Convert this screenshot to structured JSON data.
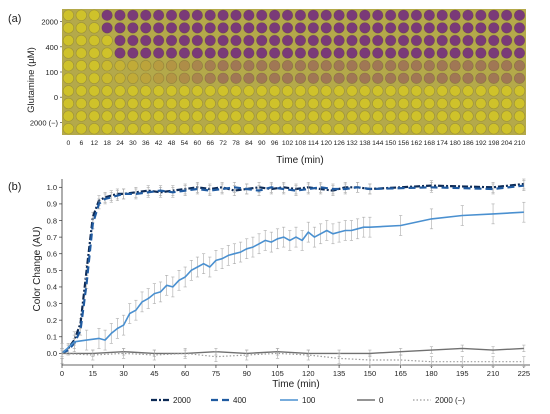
{
  "figure": {
    "panel_a": {
      "label": "(a)",
      "ylabel": "Glutamine (µM)",
      "xlabel": "Time (min)",
      "row_labels": [
        "2000",
        "400",
        "100",
        "0",
        "2000 (−)"
      ],
      "time_ticks": [
        "0",
        "6",
        "12",
        "18",
        "24",
        "30",
        "36",
        "42",
        "48",
        "54",
        "60",
        "66",
        "72",
        "78",
        "84",
        "90",
        "96",
        "102",
        "108",
        "114",
        "120",
        "126",
        "132",
        "138",
        "144",
        "150",
        "156",
        "162",
        "168",
        "174",
        "180",
        "186",
        "192",
        "198",
        "204",
        "210"
      ],
      "colors": {
        "purple": "#7a3a78",
        "yellow": "#cfc22a",
        "tray": "#b4a94a"
      }
    },
    "panel_b": {
      "label": "(b)"
    }
  },
  "chart_data": {
    "type": "line",
    "xlabel": "Time (min)",
    "ylabel": "Color Change (AU)",
    "xlim": [
      0,
      228
    ],
    "ylim": [
      -0.07,
      1.05
    ],
    "xticks": [
      0,
      15,
      30,
      45,
      60,
      75,
      90,
      105,
      120,
      135,
      150,
      165,
      180,
      195,
      210,
      225
    ],
    "yticks": [
      0.0,
      0.1,
      0.2,
      0.3,
      0.4,
      0.5,
      0.6,
      0.7,
      0.8,
      0.9,
      1.0
    ],
    "grid": false,
    "legend_position": "bottom",
    "series": [
      {
        "name": "2000",
        "color": "#0d2a55",
        "dash": "6,2,2,2",
        "width": 2.2,
        "x": [
          0,
          3,
          6,
          9,
          12,
          15,
          18,
          21,
          24,
          27,
          30,
          36,
          42,
          48,
          54,
          60,
          66,
          72,
          78,
          84,
          90,
          96,
          102,
          108,
          114,
          120,
          126,
          132,
          138,
          144,
          150,
          180,
          210,
          225
        ],
        "y": [
          0,
          0.03,
          0.08,
          0.18,
          0.5,
          0.82,
          0.92,
          0.94,
          0.95,
          0.96,
          0.96,
          0.97,
          0.98,
          0.97,
          0.98,
          0.99,
          1.0,
          0.99,
          1.0,
          0.98,
          0.99,
          1.0,
          0.99,
          1.0,
          0.99,
          1.0,
          0.99,
          0.98,
          1.0,
          1.0,
          0.99,
          1.01,
          1.0,
          1.02
        ],
        "err": 0.03
      },
      {
        "name": "400",
        "color": "#1f5aa0",
        "dash": "7,4",
        "width": 2.2,
        "x": [
          0,
          3,
          6,
          9,
          12,
          15,
          18,
          21,
          24,
          27,
          30,
          36,
          42,
          48,
          54,
          60,
          66,
          72,
          78,
          84,
          90,
          96,
          102,
          108,
          114,
          120,
          126,
          132,
          138,
          144,
          150,
          180,
          210,
          225
        ],
        "y": [
          0,
          0.02,
          0.06,
          0.14,
          0.42,
          0.78,
          0.9,
          0.93,
          0.94,
          0.95,
          0.96,
          0.96,
          0.97,
          0.98,
          0.97,
          0.98,
          0.99,
          0.98,
          0.99,
          1.0,
          0.99,
          0.98,
          1.0,
          0.99,
          0.98,
          0.99,
          1.0,
          0.99,
          0.99,
          1.0,
          0.99,
          1.0,
          0.99,
          1.01
        ],
        "err": 0.03
      },
      {
        "name": "100",
        "color": "#4a90d0",
        "dash": "",
        "width": 1.6,
        "x": [
          0,
          6,
          12,
          18,
          21,
          24,
          27,
          30,
          33,
          36,
          39,
          42,
          45,
          48,
          51,
          54,
          57,
          60,
          63,
          66,
          69,
          72,
          75,
          78,
          81,
          84,
          87,
          90,
          93,
          96,
          99,
          102,
          105,
          108,
          111,
          114,
          117,
          120,
          123,
          126,
          129,
          132,
          135,
          138,
          141,
          144,
          147,
          150,
          165,
          180,
          195,
          210,
          225
        ],
        "y": [
          0,
          0.07,
          0.08,
          0.09,
          0.08,
          0.12,
          0.15,
          0.17,
          0.24,
          0.26,
          0.31,
          0.33,
          0.36,
          0.37,
          0.41,
          0.4,
          0.44,
          0.46,
          0.5,
          0.52,
          0.54,
          0.52,
          0.56,
          0.57,
          0.59,
          0.6,
          0.61,
          0.63,
          0.64,
          0.66,
          0.68,
          0.67,
          0.69,
          0.7,
          0.68,
          0.7,
          0.68,
          0.73,
          0.7,
          0.72,
          0.74,
          0.72,
          0.73,
          0.74,
          0.74,
          0.75,
          0.76,
          0.76,
          0.77,
          0.81,
          0.83,
          0.84,
          0.85
        ],
        "err": 0.06
      },
      {
        "name": "0",
        "color": "#707070",
        "dash": "",
        "width": 1.4,
        "x": [
          0,
          15,
          30,
          45,
          60,
          75,
          90,
          105,
          120,
          135,
          150,
          165,
          180,
          195,
          210,
          225
        ],
        "y": [
          0.0,
          0.0,
          0.01,
          0.0,
          0.0,
          0.01,
          0.0,
          0.01,
          0.0,
          0.0,
          0.0,
          0.01,
          0.02,
          0.03,
          0.02,
          0.03
        ],
        "err": 0.02
      },
      {
        "name": "2000 (−)",
        "color": "#9a9a9a",
        "dash": "1.5,2",
        "width": 1.2,
        "x": [
          0,
          15,
          30,
          45,
          60,
          75,
          90,
          105,
          120,
          135,
          150,
          165,
          180,
          195,
          210,
          225
        ],
        "y": [
          0.0,
          -0.01,
          0.0,
          -0.01,
          0.0,
          -0.02,
          -0.01,
          0.0,
          -0.01,
          -0.03,
          -0.04,
          -0.04,
          -0.05,
          -0.05,
          -0.05,
          -0.05
        ],
        "err": 0.03
      }
    ]
  }
}
